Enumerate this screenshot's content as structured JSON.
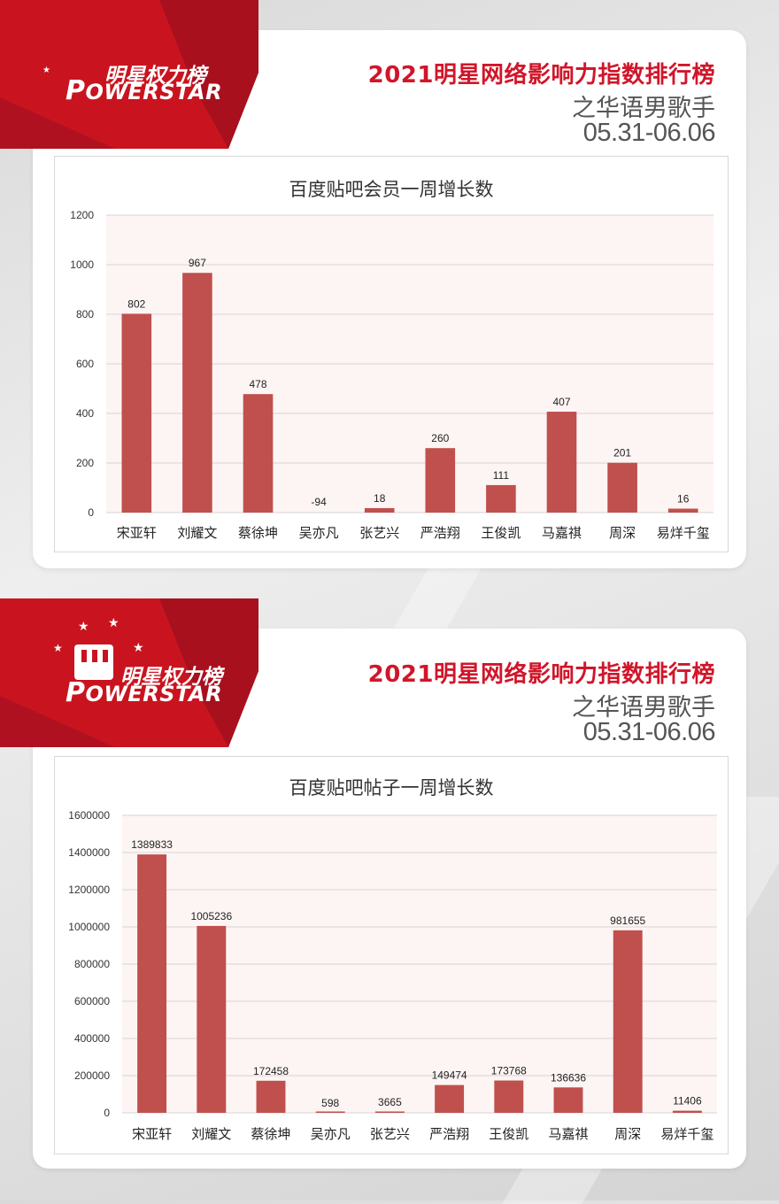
{
  "panels": [
    {
      "brand_cn": "明星权力榜",
      "brand_en": "OWERSTAR",
      "title": "2021明星网络影响力指数排行榜",
      "subtitle": "之华语男歌手",
      "date": "05.31-06.06"
    },
    {
      "brand_cn": "明星权力榜",
      "brand_en": "OWERSTAR",
      "title": "2021明星网络影响力指数排行榜",
      "subtitle": "之华语男歌手",
      "date": "05.31-06.06"
    }
  ],
  "colors": {
    "accent": "#d0162a",
    "bar": "#c0504d",
    "plot_bg": "#fdf5f4",
    "banner_dark": "#a8101e"
  },
  "chart_data": [
    {
      "type": "bar",
      "title": "百度贴吧会员一周增长数",
      "categories": [
        "宋亚轩",
        "刘耀文",
        "蔡徐坤",
        "吴亦凡",
        "张艺兴",
        "严浩翔",
        "王俊凯",
        "马嘉祺",
        "周深",
        "易烊千玺"
      ],
      "values": [
        802,
        967,
        478,
        -94,
        18,
        260,
        111,
        407,
        201,
        16
      ],
      "value_labels": [
        "802",
        "967",
        "478",
        "-94",
        "18",
        "260",
        "111",
        "407",
        "201",
        "16"
      ],
      "ylim": [
        0,
        1200
      ],
      "yticks": [
        0,
        200,
        400,
        600,
        800,
        1000,
        1200
      ],
      "grid": true,
      "xlabel": "",
      "ylabel": ""
    },
    {
      "type": "bar",
      "title": "百度贴吧帖子一周增长数",
      "categories": [
        "宋亚轩",
        "刘耀文",
        "蔡徐坤",
        "吴亦凡",
        "张艺兴",
        "严浩翔",
        "王俊凯",
        "马嘉祺",
        "周深",
        "易烊千玺"
      ],
      "values": [
        1389833,
        1005236,
        172458,
        598,
        3665,
        149474,
        173768,
        136636,
        981655,
        11406
      ],
      "value_labels": [
        "1389833",
        "1005236",
        "172458",
        "598",
        "3665",
        "149474",
        "173768",
        "136636",
        "981655",
        "11406"
      ],
      "ylim": [
        0,
        1600000
      ],
      "yticks": [
        0,
        200000,
        400000,
        600000,
        800000,
        1000000,
        1200000,
        1400000,
        1600000
      ],
      "grid": true,
      "xlabel": "",
      "ylabel": ""
    }
  ]
}
